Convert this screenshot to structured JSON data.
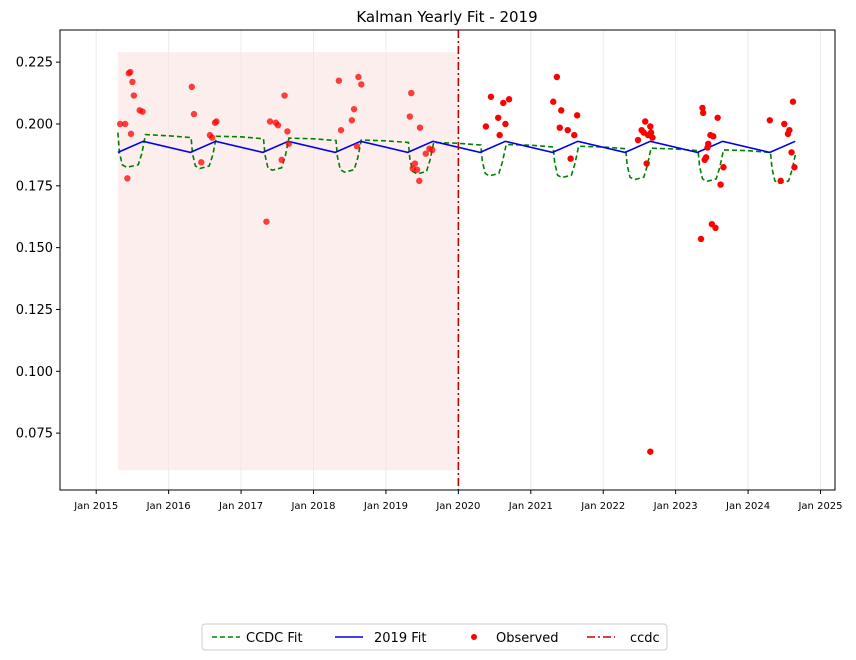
{
  "chart_data": {
    "type": "line",
    "title": "Kalman Yearly Fit - 2019",
    "xlabel": "",
    "ylabel": "",
    "xlim": [
      2014.5,
      2025.2
    ],
    "ylim": [
      0.052,
      0.238
    ],
    "grid": "vertical-yearly",
    "legend_placement": "bottom-center",
    "x_ticks": [
      {
        "label": "Jan 2015",
        "value": 2015.0
      },
      {
        "label": "Jan 2016",
        "value": 2016.0
      },
      {
        "label": "Jan 2017",
        "value": 2017.0
      },
      {
        "label": "Jan 2018",
        "value": 2018.0
      },
      {
        "label": "Jan 2019",
        "value": 2019.0
      },
      {
        "label": "Jan 2020",
        "value": 2020.0
      },
      {
        "label": "Jan 2021",
        "value": 2021.0
      },
      {
        "label": "Jan 2022",
        "value": 2022.0
      },
      {
        "label": "Jan 2023",
        "value": 2023.0
      },
      {
        "label": "Jan 2024",
        "value": 2024.0
      },
      {
        "label": "Jan 2025",
        "value": 2025.0
      }
    ],
    "y_ticks": [
      {
        "label": "0.075",
        "value": 0.075
      },
      {
        "label": "0.100",
        "value": 0.1
      },
      {
        "label": "0.125",
        "value": 0.125
      },
      {
        "label": "0.150",
        "value": 0.15
      },
      {
        "label": "0.175",
        "value": 0.175
      },
      {
        "label": "0.200",
        "value": 0.2
      },
      {
        "label": "0.225",
        "value": 0.225
      }
    ],
    "shaded_region": {
      "x": [
        2015.3,
        2020.0
      ],
      "y": [
        0.06,
        0.229
      ],
      "color": "#f9e3e0"
    },
    "vertical_line": {
      "name": "ccdc",
      "x": 2020.0,
      "color": "#cc0000"
    },
    "ccdc_fit_template": [
      [
        0.0,
        0.1965
      ],
      [
        0.04,
        0.188
      ],
      [
        0.09,
        0.183
      ],
      [
        0.32,
        0.1835
      ],
      [
        0.37,
        0.188
      ],
      [
        0.42,
        0.196
      ]
    ],
    "ccdc_fit_years": [
      {
        "start": 2015.3,
        "high": 0.1955,
        "low": 0.1825,
        "dip_start": 2015.33,
        "dip_end": 2015.68
      },
      {
        "start": 2016.0,
        "high": 0.1948,
        "low": 0.182,
        "dip_start": 2016.33,
        "dip_end": 2016.65
      },
      {
        "start": 2017.0,
        "high": 0.1945,
        "low": 0.1813,
        "dip_start": 2017.33,
        "dip_end": 2017.64
      },
      {
        "start": 2018.0,
        "high": 0.1938,
        "low": 0.1805,
        "dip_start": 2018.33,
        "dip_end": 2018.64
      },
      {
        "start": 2019.0,
        "high": 0.193,
        "low": 0.1798,
        "dip_start": 2019.33,
        "dip_end": 2019.64
      },
      {
        "start": 2020.0,
        "high": 0.192,
        "low": 0.179,
        "dip_start": 2020.33,
        "dip_end": 2020.64
      },
      {
        "start": 2021.0,
        "high": 0.1912,
        "low": 0.1783,
        "dip_start": 2021.33,
        "dip_end": 2021.64
      },
      {
        "start": 2022.0,
        "high": 0.1905,
        "low": 0.1775,
        "dip_start": 2022.33,
        "dip_end": 2022.64
      },
      {
        "start": 2023.0,
        "high": 0.1898,
        "low": 0.1768,
        "dip_start": 2023.33,
        "dip_end": 2023.64
      },
      {
        "start": 2024.0,
        "high": 0.189,
        "low": 0.176,
        "dip_start": 2024.33,
        "dip_end": 2024.64
      }
    ],
    "series": [
      {
        "name": "CCDC Fit",
        "color": "#008000",
        "style": "dashed",
        "x": [
          2015.3,
          2015.32,
          2015.36,
          2015.42,
          2015.58,
          2015.63,
          2015.68,
          2016.0,
          2016.31,
          2016.33,
          2016.37,
          2016.43,
          2016.56,
          2016.61,
          2016.66,
          2017.0,
          2017.31,
          2017.33,
          2017.37,
          2017.43,
          2017.56,
          2017.61,
          2017.66,
          2018.0,
          2018.31,
          2018.33,
          2018.37,
          2018.43,
          2018.56,
          2018.61,
          2018.66,
          2019.0,
          2019.31,
          2019.33,
          2019.37,
          2019.43,
          2019.56,
          2019.61,
          2019.66,
          2020.0,
          2020.31,
          2020.33,
          2020.37,
          2020.43,
          2020.56,
          2020.61,
          2020.66,
          2021.0,
          2021.31,
          2021.33,
          2021.37,
          2021.43,
          2021.56,
          2021.61,
          2021.66,
          2022.0,
          2022.31,
          2022.33,
          2022.37,
          2022.43,
          2022.56,
          2022.61,
          2022.66,
          2023.0,
          2023.31,
          2023.33,
          2023.37,
          2023.43,
          2023.56,
          2023.61,
          2023.66,
          2024.0,
          2024.31,
          2024.33,
          2024.37,
          2024.43,
          2024.56,
          2024.61,
          2024.66
        ],
        "y": [
          0.1965,
          0.1885,
          0.1835,
          0.1825,
          0.1835,
          0.188,
          0.1957,
          0.1952,
          0.1945,
          0.188,
          0.183,
          0.182,
          0.183,
          0.1875,
          0.195,
          0.1948,
          0.194,
          0.1875,
          0.1823,
          0.1813,
          0.1823,
          0.187,
          0.1943,
          0.194,
          0.1933,
          0.1868,
          0.1815,
          0.1805,
          0.1815,
          0.1862,
          0.1935,
          0.1932,
          0.1925,
          0.186,
          0.1808,
          0.1798,
          0.1808,
          0.1855,
          0.1925,
          0.1922,
          0.1915,
          0.185,
          0.18,
          0.179,
          0.18,
          0.1848,
          0.1917,
          0.1914,
          0.1907,
          0.1843,
          0.1793,
          0.1783,
          0.1793,
          0.184,
          0.191,
          0.1907,
          0.19,
          0.1835,
          0.1785,
          0.1775,
          0.1785,
          0.1833,
          0.1902,
          0.1899,
          0.1892,
          0.1828,
          0.1778,
          0.1768,
          0.1778,
          0.1825,
          0.1895,
          0.1892,
          0.1885,
          0.182,
          0.177,
          0.176,
          0.177,
          0.1818,
          0.1887
        ]
      },
      {
        "name": "2019 Fit",
        "color": "#0000ee",
        "style": "solid",
        "x": [
          2015.3,
          2015.65,
          2016.3,
          2016.65,
          2017.3,
          2017.65,
          2018.3,
          2018.65,
          2019.3,
          2019.65,
          2020.3,
          2020.65,
          2021.3,
          2021.65,
          2022.3,
          2022.65,
          2023.3,
          2023.65,
          2024.3,
          2024.65
        ],
        "y": [
          0.1885,
          0.193,
          0.1885,
          0.193,
          0.1885,
          0.193,
          0.1885,
          0.193,
          0.1885,
          0.193,
          0.1885,
          0.193,
          0.1885,
          0.193,
          0.1885,
          0.193,
          0.1885,
          0.193,
          0.1885,
          0.193
        ]
      },
      {
        "name": "Observed",
        "color": "#ff0000",
        "style": "scatter",
        "x": [
          2015.33,
          2015.4,
          2015.43,
          2015.45,
          2015.47,
          2015.48,
          2015.5,
          2015.52,
          2015.6,
          2015.64,
          2016.32,
          2016.35,
          2016.45,
          2016.57,
          2016.6,
          2016.64,
          2016.66,
          2017.35,
          2017.4,
          2017.48,
          2017.51,
          2017.56,
          2017.6,
          2017.64,
          2017.66,
          2018.35,
          2018.38,
          2018.53,
          2018.56,
          2018.6,
          2018.62,
          2018.66,
          2019.33,
          2019.35,
          2019.37,
          2019.4,
          2019.43,
          2019.46,
          2019.47,
          2019.55,
          2019.6,
          2019.64,
          2020.38,
          2020.45,
          2020.55,
          2020.57,
          2020.62,
          2020.65,
          2020.7,
          2021.31,
          2021.36,
          2021.4,
          2021.42,
          2021.51,
          2021.55,
          2021.6,
          2021.64,
          2022.48,
          2022.53,
          2022.56,
          2022.58,
          2022.6,
          2022.62,
          2022.65,
          2022.66,
          2022.68,
          2023.35,
          2023.37,
          2023.38,
          2023.4,
          2023.42,
          2023.44,
          2023.45,
          2023.48,
          2023.5,
          2023.52,
          2023.55,
          2023.58,
          2023.62,
          2023.66,
          2024.3,
          2024.45,
          2024.5,
          2024.55,
          2024.57,
          2024.6,
          2024.62,
          2024.64,
          2022.65
        ],
        "y": [
          0.2,
          0.2,
          0.178,
          0.2205,
          0.221,
          0.196,
          0.217,
          0.2115,
          0.2055,
          0.205,
          0.215,
          0.204,
          0.1845,
          0.1955,
          0.1945,
          0.2005,
          0.201,
          0.1605,
          0.201,
          0.2005,
          0.1995,
          0.1855,
          0.2115,
          0.197,
          0.192,
          0.2175,
          0.1975,
          0.2015,
          0.206,
          0.191,
          0.219,
          0.216,
          0.203,
          0.2125,
          0.182,
          0.184,
          0.1815,
          0.177,
          0.1985,
          0.188,
          0.19,
          0.1895,
          0.199,
          0.211,
          0.2025,
          0.1955,
          0.2085,
          0.2,
          0.21,
          0.209,
          0.219,
          0.1985,
          0.2055,
          0.1975,
          0.186,
          0.1955,
          0.2035,
          0.1935,
          0.1975,
          0.1965,
          0.201,
          0.184,
          0.1955,
          0.199,
          0.1965,
          0.1945,
          0.1535,
          0.2065,
          0.2045,
          0.1855,
          0.1865,
          0.1905,
          0.192,
          0.1955,
          0.1595,
          0.195,
          0.158,
          0.2025,
          0.1755,
          0.1825,
          0.2015,
          0.177,
          0.2,
          0.196,
          0.1975,
          0.1885,
          0.209,
          0.1825,
          0.0675
        ]
      }
    ],
    "legend": [
      "CCDC Fit",
      "2019 Fit",
      "Observed",
      "ccdc"
    ]
  }
}
